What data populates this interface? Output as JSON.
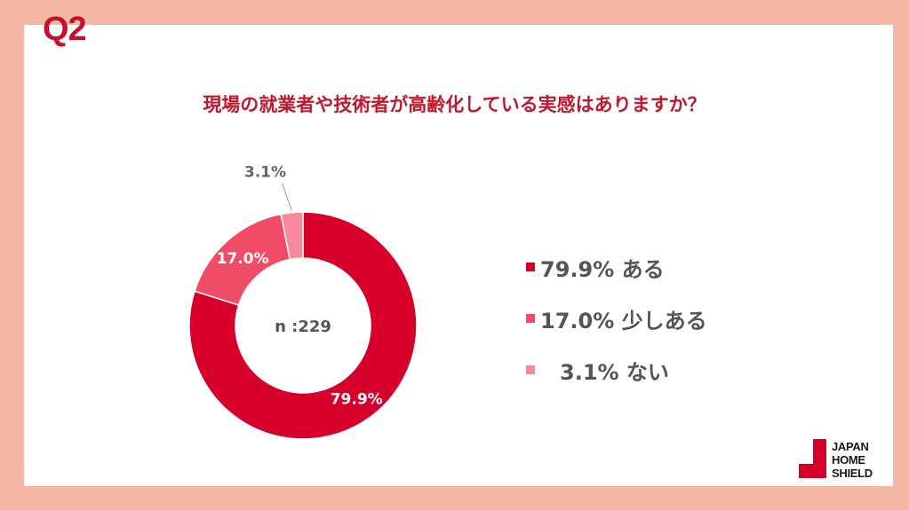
{
  "header": {
    "q_label": "Q2"
  },
  "question": "現場の就業者や技術者が高齢化している実感はありますか？",
  "chart_data": {
    "type": "pie",
    "title": "現場の就業者や技術者が高齢化している実感はありますか？",
    "center_label": "n :229",
    "slices": [
      {
        "name": "ある",
        "value": 79.9,
        "label": "79.9%",
        "legend": "79.9% ある",
        "color": "#D7002A"
      },
      {
        "name": "少しある",
        "value": 17.0,
        "label": "17.0%",
        "legend": "17.0% 少しある",
        "color": "#F04B67"
      },
      {
        "name": "ない",
        "value": 3.1,
        "label": "3.1%",
        "legend": "3.1% ない",
        "color": "#F78A9A"
      }
    ],
    "legend_position": "right"
  },
  "brand": {
    "logo_lines": [
      "JAPAN",
      "HOME",
      "SHIELD"
    ],
    "logo_color": "#D7002A"
  }
}
